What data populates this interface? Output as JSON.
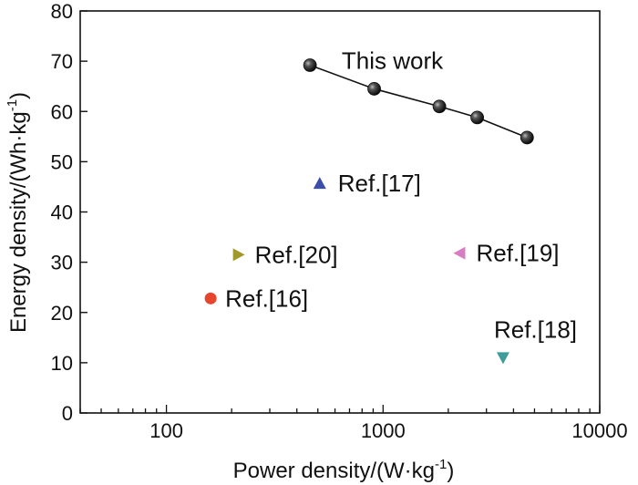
{
  "chart_data": {
    "type": "scatter",
    "xscale": "log",
    "xlabel": "Power density/(W·kg",
    "xlabel_sup": "-1",
    "xlabel_end": ")",
    "ylabel": "Energy density/(Wh·kg",
    "ylabel_sup": "-1",
    "ylabel_end": ")",
    "xlim": [
      40,
      10000
    ],
    "ylim": [
      0,
      80
    ],
    "x_ticks": [
      100,
      1000,
      10000
    ],
    "x_tick_labels": [
      "100",
      "1000",
      "10000"
    ],
    "y_ticks": [
      0,
      10,
      20,
      30,
      40,
      50,
      60,
      70,
      80
    ],
    "y_tick_labels": [
      "0",
      "10",
      "20",
      "30",
      "40",
      "50",
      "60",
      "70",
      "80"
    ],
    "grid": false,
    "series": [
      {
        "name": "This work",
        "marker": "sphere",
        "color": "#111111",
        "line": true,
        "points": [
          [
            460,
            69.2
          ],
          [
            910,
            64.5
          ],
          [
            1820,
            61.0
          ],
          [
            2720,
            58.8
          ],
          [
            4620,
            54.8
          ]
        ]
      },
      {
        "name": "Ref.[17]",
        "marker": "triangle-up",
        "color": "#3b4fa8",
        "points": [
          [
            510,
            45.7
          ]
        ]
      },
      {
        "name": "Ref.[20]",
        "marker": "triangle-right",
        "color": "#a19a2a",
        "points": [
          [
            215,
            31.5
          ]
        ]
      },
      {
        "name": "Ref.[19]",
        "marker": "triangle-left",
        "color": "#d77ec2",
        "points": [
          [
            2260,
            31.8
          ]
        ]
      },
      {
        "name": "Ref.[16]",
        "marker": "circle",
        "color": "#e8452f",
        "points": [
          [
            160,
            22.8
          ]
        ]
      },
      {
        "name": "Ref.[18]",
        "marker": "triangle-down",
        "color": "#3e9c9a",
        "points": [
          [
            3580,
            11.0
          ]
        ]
      }
    ]
  }
}
